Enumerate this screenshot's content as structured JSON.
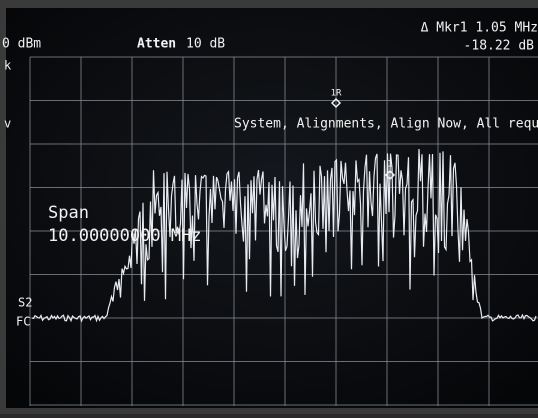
{
  "header": {
    "ref_level": "0 dBm",
    "atten_label": "Atten",
    "atten_value": "10 dB",
    "marker": "Δ Mkr1  1.05 MHz",
    "marker_value": "-18.22 dB"
  },
  "left_edge": {
    "top": "k",
    "middle": "v",
    "s2": "S2",
    "fc": "FC"
  },
  "marker_labels": {
    "ref": "1R",
    "delta": "1"
  },
  "message": "System, Alignments, Align Now, All required",
  "span": {
    "label": "Span",
    "value": "10.00000000 MHz"
  }
}
